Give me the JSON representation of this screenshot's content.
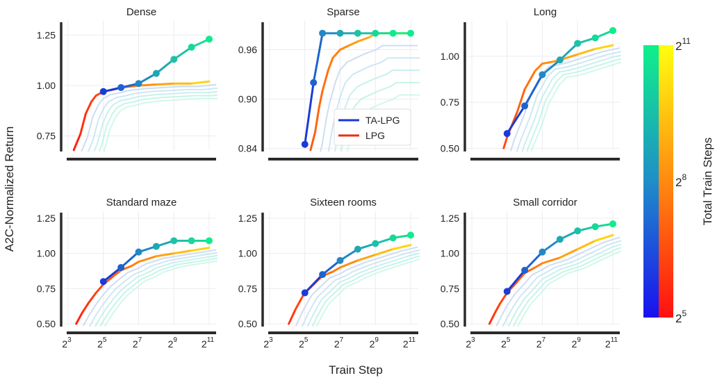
{
  "figure": {
    "ylabel": "A2C-Normalized Return",
    "xlabel": "Train Step",
    "colorbar": {
      "label": "Total Train Steps",
      "ticks": [
        {
          "base": "2",
          "exp": "11",
          "value": 11
        },
        {
          "base": "2",
          "exp": "8",
          "value": 8
        },
        {
          "base": "2",
          "exp": "5",
          "value": 5
        }
      ]
    },
    "legend": [
      {
        "label": "TA-LPG",
        "color": "#1538d6"
      },
      {
        "label": "LPG",
        "color": "#ee2b12"
      }
    ]
  },
  "chart_data": [
    {
      "type": "line",
      "title": "Dense",
      "xscale": "log2",
      "xlim": [
        8,
        2048
      ],
      "ylim": [
        0.68,
        1.3
      ],
      "yticks": [
        "0.75",
        "1.00",
        "1.25"
      ],
      "ytick_values": [
        0.75,
        1.0,
        1.25
      ],
      "xticks": [],
      "xtick_values": [],
      "series": [
        {
          "name": "TA-LPG",
          "x": [
            32,
            64,
            128,
            256,
            512,
            1024,
            2048
          ],
          "y": [
            0.97,
            0.99,
            1.01,
            1.06,
            1.13,
            1.19,
            1.23
          ]
        },
        {
          "name": "LPG",
          "x": [
            10,
            13,
            16,
            20,
            24,
            32,
            48,
            64,
            128,
            256,
            512,
            1024,
            2048
          ],
          "y": [
            0.68,
            0.76,
            0.86,
            0.92,
            0.95,
            0.97,
            0.98,
            0.99,
            1.0,
            1.005,
            1.01,
            1.01,
            1.02
          ]
        }
      ]
    },
    {
      "type": "line",
      "title": "Sparse",
      "xscale": "log2",
      "xlim": [
        8,
        2048
      ],
      "ylim": [
        0.838,
        0.99
      ],
      "yticks": [
        "0.84",
        "0.90",
        "0.96"
      ],
      "ytick_values": [
        0.84,
        0.9,
        0.96
      ],
      "xticks": [],
      "xtick_values": [],
      "series": [
        {
          "name": "TA-LPG",
          "x": [
            32,
            45,
            64,
            128,
            256,
            512,
            1024,
            2048
          ],
          "y": [
            0.845,
            0.92,
            0.98,
            0.98,
            0.98,
            0.98,
            0.98,
            0.98
          ]
        },
        {
          "name": "LPG",
          "x": [
            40,
            48,
            56,
            64,
            80,
            96,
            128,
            180,
            256,
            400,
            512,
            1024,
            2048
          ],
          "y": [
            0.838,
            0.86,
            0.89,
            0.91,
            0.935,
            0.95,
            0.96,
            0.965,
            0.97,
            0.975,
            0.98,
            0.98,
            0.98
          ]
        }
      ]
    },
    {
      "type": "line",
      "title": "Long",
      "xscale": "log2",
      "xlim": [
        8,
        2048
      ],
      "ylim": [
        0.49,
        1.17
      ],
      "yticks": [
        "0.50",
        "0.75",
        "1.00"
      ],
      "ytick_values": [
        0.5,
        0.75,
        1.0
      ],
      "xticks": [],
      "xtick_values": [],
      "series": [
        {
          "name": "TA-LPG",
          "x": [
            32,
            64,
            128,
            256,
            512,
            1024,
            2048
          ],
          "y": [
            0.58,
            0.73,
            0.9,
            0.98,
            1.07,
            1.1,
            1.14
          ]
        },
        {
          "name": "LPG",
          "x": [
            28,
            32,
            48,
            64,
            96,
            128,
            192,
            256,
            512,
            1024,
            2048
          ],
          "y": [
            0.5,
            0.56,
            0.7,
            0.82,
            0.92,
            0.96,
            0.97,
            0.98,
            1.01,
            1.04,
            1.06
          ]
        }
      ]
    },
    {
      "type": "line",
      "title": "Standard maze",
      "xscale": "log2",
      "xlim": [
        8,
        2048
      ],
      "ylim": [
        0.49,
        1.27
      ],
      "yticks": [
        "0.50",
        "0.75",
        "1.00",
        "1.25"
      ],
      "ytick_values": [
        0.5,
        0.75,
        1.0,
        1.25
      ],
      "xticks": [
        {
          "base": "2",
          "exp": "3"
        },
        {
          "base": "2",
          "exp": "5"
        },
        {
          "base": "2",
          "exp": "7"
        },
        {
          "base": "2",
          "exp": "9"
        },
        {
          "base": "2",
          "exp": "11"
        }
      ],
      "xtick_values": [
        8,
        32,
        128,
        512,
        2048
      ],
      "series": [
        {
          "name": "TA-LPG",
          "x": [
            32,
            64,
            128,
            256,
            512,
            1024,
            2048
          ],
          "y": [
            0.8,
            0.9,
            1.01,
            1.05,
            1.09,
            1.09,
            1.09
          ]
        },
        {
          "name": "LPG",
          "x": [
            11,
            14,
            18,
            24,
            32,
            48,
            64,
            96,
            128,
            256,
            512,
            1024,
            2048
          ],
          "y": [
            0.5,
            0.58,
            0.65,
            0.72,
            0.78,
            0.84,
            0.88,
            0.91,
            0.94,
            0.98,
            1.0,
            1.02,
            1.04
          ]
        }
      ]
    },
    {
      "type": "line",
      "title": "Sixteen rooms",
      "xscale": "log2",
      "xlim": [
        8,
        2048
      ],
      "ylim": [
        0.49,
        1.27
      ],
      "yticks": [
        "0.50",
        "0.75",
        "1.00",
        "1.25"
      ],
      "ytick_values": [
        0.5,
        0.75,
        1.0,
        1.25
      ],
      "xticks": [
        {
          "base": "2",
          "exp": "3"
        },
        {
          "base": "2",
          "exp": "5"
        },
        {
          "base": "2",
          "exp": "7"
        },
        {
          "base": "2",
          "exp": "9"
        },
        {
          "base": "2",
          "exp": "11"
        }
      ],
      "xtick_values": [
        8,
        32,
        128,
        512,
        2048
      ],
      "series": [
        {
          "name": "TA-LPG",
          "x": [
            32,
            64,
            128,
            256,
            512,
            1024,
            2048
          ],
          "y": [
            0.72,
            0.85,
            0.95,
            1.03,
            1.07,
            1.11,
            1.13
          ]
        },
        {
          "name": "LPG",
          "x": [
            17,
            22,
            28,
            32,
            48,
            64,
            96,
            128,
            256,
            512,
            1024,
            2048
          ],
          "y": [
            0.5,
            0.6,
            0.68,
            0.72,
            0.79,
            0.84,
            0.87,
            0.9,
            0.95,
            0.99,
            1.03,
            1.06
          ]
        }
      ]
    },
    {
      "type": "line",
      "title": "Small corridor",
      "xscale": "log2",
      "xlim": [
        8,
        2048
      ],
      "ylim": [
        0.49,
        1.27
      ],
      "yticks": [
        "0.50",
        "0.75",
        "1.00",
        "1.25"
      ],
      "ytick_values": [
        0.5,
        0.75,
        1.0,
        1.25
      ],
      "xticks": [
        {
          "base": "2",
          "exp": "3"
        },
        {
          "base": "2",
          "exp": "5"
        },
        {
          "base": "2",
          "exp": "7"
        },
        {
          "base": "2",
          "exp": "9"
        },
        {
          "base": "2",
          "exp": "11"
        }
      ],
      "xtick_values": [
        8,
        32,
        128,
        512,
        2048
      ],
      "series": [
        {
          "name": "TA-LPG",
          "x": [
            32,
            64,
            128,
            256,
            512,
            1024,
            2048
          ],
          "y": [
            0.73,
            0.88,
            1.01,
            1.1,
            1.16,
            1.19,
            1.21
          ]
        },
        {
          "name": "LPG",
          "x": [
            16,
            20,
            24,
            32,
            48,
            64,
            96,
            128,
            256,
            512,
            1024,
            2048
          ],
          "y": [
            0.5,
            0.58,
            0.64,
            0.72,
            0.8,
            0.86,
            0.9,
            0.93,
            0.97,
            1.03,
            1.09,
            1.13
          ]
        }
      ]
    }
  ]
}
